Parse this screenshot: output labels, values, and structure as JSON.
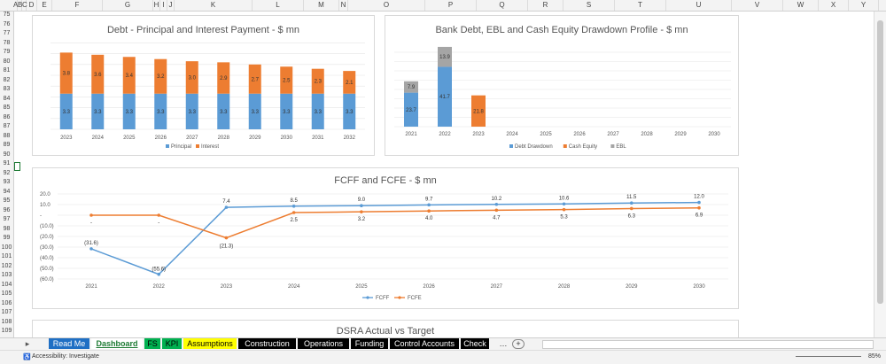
{
  "columns": [
    "A",
    "B",
    "C",
    "D",
    "E",
    "F",
    "G",
    "H",
    "I",
    "J",
    "K",
    "L",
    "M",
    "N",
    "O",
    "P",
    "Q",
    "R",
    "S",
    "T",
    "U",
    "V",
    "W",
    "X",
    "Y"
  ],
  "rows": [
    "75",
    "76",
    "77",
    "78",
    "79",
    "80",
    "81",
    "82",
    "83",
    "84",
    "85",
    "86",
    "87",
    "88",
    "89",
    "90",
    "91",
    "92",
    "93",
    "94",
    "95",
    "96",
    "97",
    "98",
    "99",
    "100",
    "101",
    "102",
    "103",
    "104",
    "105",
    "106",
    "107",
    "108",
    "109"
  ],
  "colors": {
    "principal": "#5b9bd5",
    "interest": "#ed7d31",
    "ebl": "#a5a5a5",
    "fcff": "#5b9bd5",
    "fcfe": "#ed7d31"
  },
  "chart_data": [
    {
      "type": "bar",
      "title": "Debt - Principal and Interest Payment - $ mn",
      "categories": [
        "2023",
        "2024",
        "2025",
        "2026",
        "2027",
        "2028",
        "2029",
        "2030",
        "2031",
        "2032"
      ],
      "series": [
        {
          "name": "Principal",
          "values": [
            3.3,
            3.3,
            3.3,
            3.3,
            3.3,
            3.3,
            3.3,
            3.3,
            3.3,
            3.3
          ]
        },
        {
          "name": "Interest",
          "values": [
            3.8,
            3.6,
            3.4,
            3.2,
            3.0,
            2.9,
            2.7,
            2.5,
            2.3,
            2.1
          ]
        }
      ],
      "stacked": true,
      "legend": "bottom",
      "grid": true
    },
    {
      "type": "bar",
      "title": "Bank Debt, EBL and Cash Equity Drawdown Profile - $ mn",
      "categories": [
        "2021",
        "2022",
        "2023",
        "2024",
        "2025",
        "2026",
        "2027",
        "2028",
        "2029",
        "2030"
      ],
      "series": [
        {
          "name": "Debt Drawdown",
          "values": [
            23.7,
            41.7,
            0,
            0,
            0,
            0,
            0,
            0,
            0,
            0
          ]
        },
        {
          "name": "Cash Equity",
          "values": [
            0,
            0,
            21.8,
            0,
            0,
            0,
            0,
            0,
            0,
            0
          ]
        },
        {
          "name": "EBL",
          "values": [
            7.9,
            13.9,
            0,
            0,
            0,
            0,
            0,
            0,
            0,
            0
          ]
        }
      ],
      "stacked": true,
      "legend": "bottom",
      "grid": true
    },
    {
      "type": "line",
      "title": "FCFF and FCFE - $ mn",
      "x": [
        "2021",
        "2022",
        "2023",
        "2024",
        "2025",
        "2026",
        "2027",
        "2028",
        "2029",
        "2030"
      ],
      "series": [
        {
          "name": "FCFF",
          "values": [
            -31.6,
            -55.6,
            7.4,
            8.5,
            9.0,
            9.7,
            10.2,
            10.6,
            11.5,
            12.0
          ],
          "labels": [
            "(31.6)",
            "(55.6)",
            "7.4",
            "8.5",
            "9.0",
            "9.7",
            "10.2",
            "10.6",
            "11.5",
            "12.0"
          ]
        },
        {
          "name": "FCFE",
          "values": [
            0,
            0,
            -21.3,
            2.5,
            3.2,
            4.0,
            4.7,
            5.3,
            6.3,
            6.9
          ],
          "labels": [
            "-",
            "-",
            "(21.3)",
            "2.5",
            "3.2",
            "4.0",
            "4.7",
            "5.3",
            "6.3",
            "6.9"
          ]
        }
      ],
      "ylim": [
        -60,
        20
      ],
      "yticks": [
        "20.0",
        "10.0",
        "-",
        "(10.0)",
        "(20.0)",
        "(30.0)",
        "(40.0)",
        "(50.0)",
        "(60.0)"
      ],
      "legend": "bottom",
      "grid": true
    },
    {
      "type": "bar",
      "title": "DSRA Actual vs Target"
    }
  ],
  "tabs": [
    {
      "label": "Read Me",
      "bg": "#1f6fc4",
      "fg": "#ffffff"
    },
    {
      "label": "Dashboard",
      "bg": "#ffffff",
      "fg": "#1e7b34"
    },
    {
      "label": "FS",
      "bg": "#00b050",
      "fg": "#000000"
    },
    {
      "label": "KPI",
      "bg": "#00b050",
      "fg": "#000000"
    },
    {
      "label": "Assumptions",
      "bg": "#ffff00",
      "fg": "#000000"
    },
    {
      "label": "Construction",
      "bg": "#000000",
      "fg": "#ffffff"
    },
    {
      "label": "Operations",
      "bg": "#000000",
      "fg": "#ffffff"
    },
    {
      "label": "Funding",
      "bg": "#000000",
      "fg": "#ffffff"
    },
    {
      "label": "Control Accounts",
      "bg": "#000000",
      "fg": "#ffffff"
    },
    {
      "label": "Check ...",
      "bg": "#000000",
      "fg": "#ffffff"
    }
  ],
  "status": {
    "accessibility": "Accessibility: Investigate",
    "zoom": "85%"
  }
}
